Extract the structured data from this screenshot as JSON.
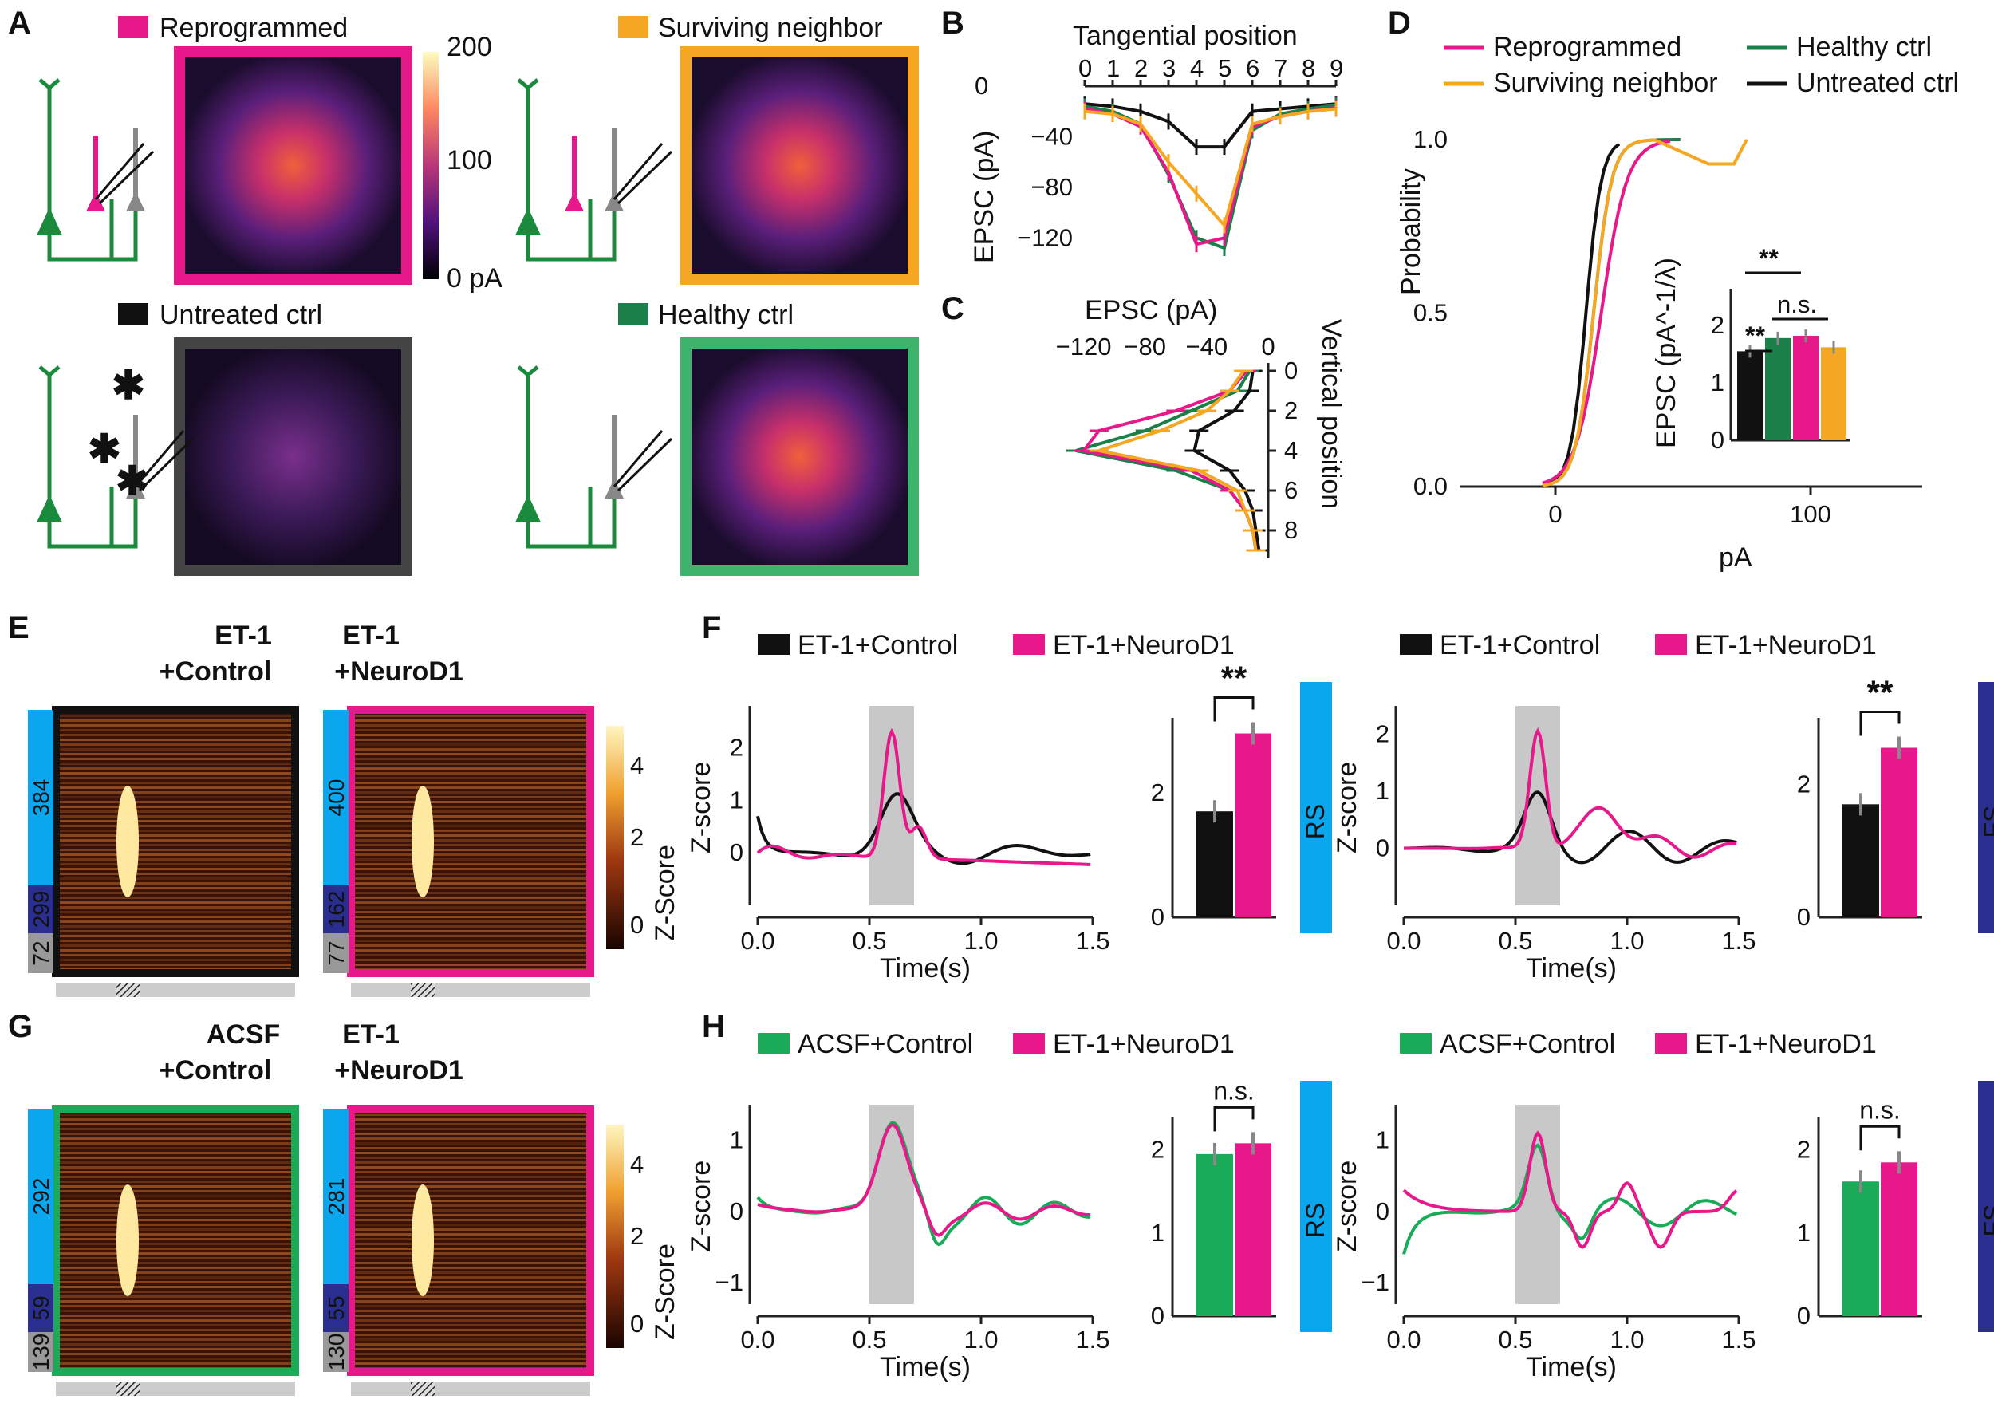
{
  "panel_letters": [
    "A",
    "B",
    "C",
    "D",
    "E",
    "F",
    "G",
    "H"
  ],
  "colors": {
    "reprog": "#e7198a",
    "neighbor": "#f5a623",
    "untreated": "#111111",
    "healthy": "#1a7f48",
    "acsf": "#1aab58",
    "rs": "#0aa7ee",
    "fs": "#2a2f8f",
    "shade": "#c8c8c8",
    "red": "#e5202a"
  },
  "panelA": {
    "groups": [
      {
        "label": "Reprogrammed",
        "color": "#e7198a",
        "intensity": 0.95
      },
      {
        "label": "Surviving neighbor",
        "color": "#f5a623",
        "intensity": 0.85
      },
      {
        "label": "Untreated ctrl",
        "color": "#444444",
        "intensity": 0.35
      },
      {
        "label": "Healthy ctrl",
        "color": "#3fb36c",
        "intensity": 0.9
      }
    ],
    "colorbar": {
      "ticks": [
        "200",
        "100",
        "0 pA"
      ]
    }
  },
  "chart_data": [
    {
      "id": "B",
      "type": "line",
      "title": "Tangential position",
      "ylabel": "EPSC (pA)",
      "x": [
        0,
        1,
        2,
        3,
        4,
        5,
        6,
        7,
        8,
        9
      ],
      "xticks": [
        "0",
        "1",
        "2",
        "3",
        "4",
        "5",
        "6",
        "7",
        "8",
        "9"
      ],
      "yticks": [
        "0",
        "−40",
        "−80",
        "−120"
      ],
      "ylim": [
        -140,
        0
      ],
      "series": [
        {
          "key": "untreated",
          "values": [
            -14,
            -16,
            -20,
            -28,
            -48,
            -48,
            -20,
            -18,
            -16,
            -14
          ]
        },
        {
          "key": "healthy",
          "values": [
            -16,
            -20,
            -30,
            -70,
            -120,
            -128,
            -35,
            -22,
            -18,
            -15
          ]
        },
        {
          "key": "reprog",
          "values": [
            -18,
            -22,
            -32,
            -68,
            -125,
            -120,
            -32,
            -24,
            -20,
            -17
          ]
        },
        {
          "key": "neighbor",
          "values": [
            -20,
            -22,
            -30,
            -60,
            -85,
            -110,
            -30,
            -24,
            -20,
            -18
          ]
        }
      ]
    },
    {
      "id": "C",
      "type": "line",
      "title": "EPSC (pA)",
      "ylabel": "Vertical position",
      "xticks": [
        "−120",
        "−80",
        "−40",
        "0"
      ],
      "yticks": [
        "0",
        "2",
        "4",
        "6",
        "8"
      ],
      "y": [
        0,
        1,
        2,
        3,
        4,
        5,
        6,
        7,
        8,
        9
      ],
      "series": [
        {
          "key": "untreated",
          "values": [
            -10,
            -12,
            -22,
            -45,
            -48,
            -25,
            -15,
            -10,
            -8,
            -6
          ]
        },
        {
          "key": "healthy",
          "values": [
            -12,
            -20,
            -50,
            -80,
            -125,
            -60,
            -25,
            -15,
            -10,
            -8
          ]
        },
        {
          "key": "reprog",
          "values": [
            -14,
            -25,
            -60,
            -110,
            -120,
            -50,
            -25,
            -15,
            -10,
            -8
          ]
        },
        {
          "key": "neighbor",
          "values": [
            -16,
            -25,
            -40,
            -70,
            -110,
            -45,
            -20,
            -15,
            -10,
            -8
          ]
        }
      ]
    },
    {
      "id": "D",
      "type": "line",
      "xlabel": "pA",
      "ylabel": "Probability",
      "xticks": [
        "0",
        "100"
      ],
      "yticks": [
        "0.0",
        "0.5",
        "1.0"
      ],
      "legend": [
        {
          "key": "reprog",
          "label": "Reprogrammed"
        },
        {
          "key": "healthy",
          "label": "Healthy ctrl"
        },
        {
          "key": "neighbor",
          "label": "Surviving neighbor"
        },
        {
          "key": "untreated",
          "label": "Untreated ctrl"
        }
      ],
      "inset": {
        "type": "bar",
        "ylabel": "EPSC (pA^-1/λ)",
        "yticks": [
          "0",
          "1",
          "2"
        ],
        "ylim": [
          0,
          2.5
        ],
        "values": [
          {
            "key": "untreated",
            "v": 1.55
          },
          {
            "key": "healthy",
            "v": 1.78
          },
          {
            "key": "reprog",
            "v": 1.82
          },
          {
            "key": "neighbor",
            "v": 1.62
          }
        ],
        "sig": [
          {
            "text": "**"
          },
          {
            "text": "**"
          },
          {
            "text": "n.s."
          }
        ]
      }
    },
    {
      "id": "F",
      "type": "line",
      "xlabel": "Time(s)",
      "ylabel": "Z-score",
      "xticks": [
        "0.0",
        "0.5",
        "1.0",
        "1.5"
      ],
      "legend": [
        {
          "key": "untreated",
          "label": "ET-1+Control"
        },
        {
          "key": "reprog",
          "label": "ET-1+NeuroD1"
        }
      ],
      "left": {
        "yticks": [
          "0",
          "1",
          "2"
        ],
        "ylim": [
          -1.0,
          2.8
        ],
        "bars": [
          {
            "key": "untreated",
            "v": 1.7
          },
          {
            "key": "reprog",
            "v": 2.95
          }
        ],
        "yticksBar": [
          "0",
          "2"
        ],
        "ylimBar": [
          0,
          3.2
        ],
        "sig": "**",
        "tag": "RS"
      },
      "right": {
        "yticks": [
          "0",
          "1",
          "2"
        ],
        "ylim": [
          -1.0,
          2.5
        ],
        "bars": [
          {
            "key": "untreated",
            "v": 1.7
          },
          {
            "key": "reprog",
            "v": 2.55
          }
        ],
        "yticksBar": [
          "0",
          "2"
        ],
        "ylimBar": [
          0,
          3.0
        ],
        "sig": "**",
        "tag": "FS"
      }
    },
    {
      "id": "H",
      "type": "line",
      "xlabel": "Time(s)",
      "ylabel": "Z-score",
      "xticks": [
        "0.0",
        "0.5",
        "1.0",
        "1.5"
      ],
      "legend": [
        {
          "key": "acsf",
          "label": "ACSF+Control"
        },
        {
          "key": "reprog",
          "label": "ET-1+NeuroD1"
        }
      ],
      "left": {
        "yticks": [
          "−1",
          "0",
          "1"
        ],
        "ylim": [
          -1.3,
          1.5
        ],
        "bars": [
          {
            "key": "acsf",
            "v": 1.95
          },
          {
            "key": "reprog",
            "v": 2.08
          }
        ],
        "yticksBar": [
          "0",
          "1",
          "2"
        ],
        "ylimBar": [
          0,
          2.4
        ],
        "sig": "n.s.",
        "tag": "RS"
      },
      "right": {
        "yticks": [
          "−1",
          "0",
          "1"
        ],
        "ylim": [
          -1.3,
          1.5
        ],
        "bars": [
          {
            "key": "acsf",
            "v": 1.62
          },
          {
            "key": "reprog",
            "v": 1.85
          }
        ],
        "yticksBar": [
          "0",
          "1",
          "2"
        ],
        "ylimBar": [
          0,
          2.4
        ],
        "sig": "n.s.",
        "tag": "FS"
      }
    }
  ],
  "panelE": {
    "left": {
      "title": [
        "ET-1",
        "+Control"
      ],
      "titleColor": "#111111",
      "frame": "#111111",
      "counts": [
        "384",
        "299",
        "72"
      ]
    },
    "right": {
      "title": [
        "ET-1",
        "+NeuroD1"
      ],
      "titleColor": "#e7198a",
      "frame": "#e7198a",
      "counts": [
        "400",
        "162",
        "77"
      ]
    },
    "colorbar": {
      "label": "Z-Score",
      "ticks": [
        "4",
        "2",
        "0"
      ]
    }
  },
  "panelG": {
    "left": {
      "title": [
        "ACSF",
        "+Control"
      ],
      "titleColor": "#1aab58",
      "frame": "#1aab58",
      "counts": [
        "292",
        "59",
        "139"
      ]
    },
    "right": {
      "title": [
        "ET-1",
        "+NeuroD1"
      ],
      "titleColor": "#e7198a",
      "frame": "#e7198a",
      "counts": [
        "281",
        "55",
        "130"
      ]
    },
    "colorbar": {
      "label": "Z-Score",
      "ticks": [
        "4",
        "2",
        "0"
      ]
    }
  }
}
